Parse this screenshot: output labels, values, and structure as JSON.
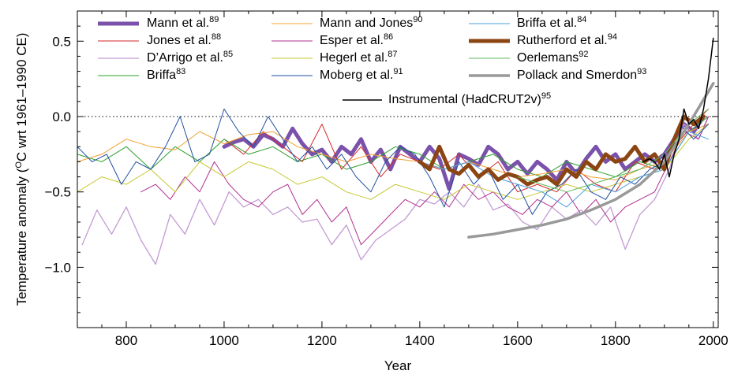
{
  "chart_data": {
    "type": "line",
    "xlabel": "Year",
    "ylabel_main": "Temperature anomaly (",
    "ylabel_sup": "O",
    "ylabel_rest": "C wrt 1961–1990 CE)",
    "xlim": [
      700,
      2010
    ],
    "ylim": [
      -1.4,
      0.7
    ],
    "xticks": [
      800,
      1000,
      1200,
      1400,
      1600,
      1800,
      2000
    ],
    "yticks": [
      {
        "value": 0.5,
        "label": "0.5"
      },
      {
        "value": 0.0,
        "label": "0.0"
      },
      {
        "value": -0.5,
        "label": "−0.5"
      },
      {
        "value": -1.0,
        "label": "−1.0"
      }
    ],
    "zero_line": "dotted",
    "legend_position": "top",
    "series": [
      {
        "name": "Mann et al.",
        "ref": "89",
        "color": "#7b52ab",
        "width": 5,
        "x": [
          1000,
          1020,
          1040,
          1060,
          1080,
          1100,
          1120,
          1140,
          1160,
          1180,
          1200,
          1220,
          1240,
          1260,
          1280,
          1300,
          1320,
          1340,
          1360,
          1380,
          1400,
          1420,
          1440,
          1460,
          1480,
          1500,
          1520,
          1540,
          1560,
          1580,
          1600,
          1620,
          1640,
          1660,
          1680,
          1700,
          1720,
          1740,
          1760,
          1780,
          1800,
          1820,
          1840,
          1860,
          1880,
          1900,
          1920,
          1940,
          1960,
          1980
        ],
        "y": [
          -0.2,
          -0.17,
          -0.15,
          -0.2,
          -0.12,
          -0.15,
          -0.2,
          -0.08,
          -0.18,
          -0.25,
          -0.22,
          -0.3,
          -0.2,
          -0.25,
          -0.15,
          -0.3,
          -0.22,
          -0.35,
          -0.2,
          -0.25,
          -0.3,
          -0.2,
          -0.28,
          -0.48,
          -0.25,
          -0.28,
          -0.32,
          -0.2,
          -0.25,
          -0.35,
          -0.3,
          -0.38,
          -0.3,
          -0.35,
          -0.42,
          -0.3,
          -0.38,
          -0.28,
          -0.2,
          -0.3,
          -0.25,
          -0.35,
          -0.3,
          -0.25,
          -0.3,
          -0.25,
          -0.15,
          -0.05,
          -0.1,
          0.0
        ]
      },
      {
        "name": "Jones et al.",
        "ref": "88",
        "color": "#d62728",
        "width": 1,
        "x": [
          1000,
          1040,
          1080,
          1120,
          1160,
          1200,
          1240,
          1280,
          1320,
          1360,
          1400,
          1440,
          1480,
          1520,
          1560,
          1600,
          1640,
          1680,
          1720,
          1760,
          1800,
          1840,
          1880,
          1920,
          1960,
          1990
        ],
        "y": [
          -0.15,
          -0.25,
          -0.1,
          -0.2,
          -0.3,
          -0.05,
          -0.35,
          -0.2,
          -0.4,
          -0.25,
          -0.3,
          -0.35,
          -0.25,
          -0.4,
          -0.3,
          -0.5,
          -0.45,
          -0.5,
          -0.35,
          -0.45,
          -0.5,
          -0.3,
          -0.35,
          -0.2,
          -0.05,
          0.05
        ]
      },
      {
        "name": "D’Arrigo et al.",
        "ref": "85",
        "color": "#c39bd3",
        "width": 1.3,
        "x": [
          710,
          740,
          770,
          800,
          830,
          860,
          890,
          920,
          950,
          980,
          1010,
          1040,
          1070,
          1100,
          1130,
          1160,
          1190,
          1220,
          1250,
          1280,
          1310,
          1340,
          1370,
          1400,
          1430,
          1460,
          1490,
          1520,
          1550,
          1580,
          1610,
          1640,
          1670,
          1700,
          1730,
          1760,
          1790,
          1820,
          1850,
          1880,
          1910,
          1940,
          1970,
          1990
        ],
        "y": [
          -0.85,
          -0.62,
          -0.78,
          -0.6,
          -0.82,
          -0.98,
          -0.65,
          -0.78,
          -0.55,
          -0.72,
          -0.5,
          -0.6,
          -0.55,
          -0.65,
          -0.6,
          -0.7,
          -0.68,
          -0.85,
          -0.72,
          -0.95,
          -0.82,
          -0.75,
          -0.68,
          -0.55,
          -0.58,
          -0.5,
          -0.6,
          -0.45,
          -0.62,
          -0.58,
          -0.7,
          -0.75,
          -0.6,
          -0.68,
          -0.62,
          -0.72,
          -0.6,
          -0.88,
          -0.65,
          -0.55,
          -0.35,
          -0.05,
          -0.15,
          0.0
        ]
      },
      {
        "name": "Briffa",
        "ref": "83",
        "color": "#2ca02c",
        "width": 1,
        "x": [
          700,
          750,
          800,
          850,
          900,
          950,
          1000,
          1050,
          1100,
          1150,
          1200,
          1250,
          1300,
          1350,
          1400,
          1450,
          1500,
          1550,
          1600,
          1650,
          1700,
          1750,
          1800,
          1850,
          1900,
          1950,
          1990
        ],
        "y": [
          -0.25,
          -0.3,
          -0.2,
          -0.35,
          -0.2,
          -0.3,
          -0.15,
          -0.25,
          -0.2,
          -0.3,
          -0.25,
          -0.35,
          -0.3,
          -0.2,
          -0.25,
          -0.35,
          -0.3,
          -0.25,
          -0.35,
          -0.4,
          -0.3,
          -0.35,
          -0.4,
          -0.3,
          -0.35,
          -0.1,
          0.0
        ]
      },
      {
        "name": "Mann and Jones",
        "ref": "90",
        "color": "#f0a030",
        "width": 1,
        "x": [
          700,
          750,
          800,
          850,
          900,
          950,
          1000,
          1050,
          1100,
          1150,
          1200,
          1250,
          1300,
          1350,
          1400,
          1450,
          1500,
          1550,
          1600,
          1650,
          1700,
          1750,
          1800,
          1850,
          1900,
          1950,
          1990
        ],
        "y": [
          -0.3,
          -0.25,
          -0.15,
          -0.2,
          -0.22,
          -0.1,
          -0.18,
          -0.12,
          -0.1,
          -0.2,
          -0.25,
          -0.3,
          -0.25,
          -0.28,
          -0.3,
          -0.35,
          -0.3,
          -0.35,
          -0.4,
          -0.38,
          -0.35,
          -0.4,
          -0.42,
          -0.35,
          -0.3,
          -0.1,
          -0.05
        ]
      },
      {
        "name": "Esper et al.",
        "ref": "86",
        "color": "#b0308f",
        "width": 1,
        "x": [
          830,
          860,
          890,
          920,
          950,
          980,
          1010,
          1040,
          1070,
          1100,
          1130,
          1160,
          1190,
          1220,
          1250,
          1280,
          1310,
          1340,
          1370,
          1400,
          1430,
          1460,
          1490,
          1520,
          1550,
          1580,
          1610,
          1640,
          1670,
          1700,
          1730,
          1760,
          1790,
          1820,
          1850,
          1880,
          1910,
          1940,
          1970,
          1990
        ],
        "y": [
          -0.5,
          -0.45,
          -0.55,
          -0.4,
          -0.5,
          -0.3,
          -0.45,
          -0.55,
          -0.6,
          -0.5,
          -0.45,
          -0.65,
          -0.55,
          -0.7,
          -0.6,
          -0.85,
          -0.75,
          -0.65,
          -0.55,
          -0.6,
          -0.5,
          -0.6,
          -0.45,
          -0.55,
          -0.5,
          -0.6,
          -0.65,
          -0.55,
          -0.6,
          -0.5,
          -0.65,
          -0.55,
          -0.7,
          -0.6,
          -0.55,
          -0.5,
          -0.3,
          -0.1,
          -0.15,
          0.0
        ]
      },
      {
        "name": "Hegerl et al.",
        "ref": "87",
        "color": "#c8c832",
        "width": 1,
        "x": [
          700,
          750,
          800,
          850,
          900,
          950,
          1000,
          1050,
          1100,
          1150,
          1200,
          1250,
          1300,
          1350,
          1400,
          1450,
          1500,
          1550,
          1600,
          1650,
          1700,
          1750,
          1800,
          1850,
          1900,
          1950,
          1990
        ],
        "y": [
          -0.5,
          -0.4,
          -0.45,
          -0.35,
          -0.5,
          -0.3,
          -0.4,
          -0.3,
          -0.35,
          -0.45,
          -0.4,
          -0.5,
          -0.55,
          -0.45,
          -0.5,
          -0.55,
          -0.45,
          -0.5,
          -0.55,
          -0.5,
          -0.45,
          -0.5,
          -0.45,
          -0.4,
          -0.35,
          -0.15,
          -0.05
        ]
      },
      {
        "name": "Moberg et al.",
        "ref": "91",
        "color": "#1f4fa0",
        "width": 1,
        "x": [
          700,
          730,
          760,
          790,
          820,
          850,
          880,
          910,
          940,
          970,
          1000,
          1030,
          1060,
          1090,
          1120,
          1150,
          1180,
          1210,
          1240,
          1270,
          1300,
          1330,
          1360,
          1390,
          1420,
          1450,
          1480,
          1510,
          1540,
          1570,
          1600,
          1630,
          1660,
          1690,
          1720,
          1750,
          1780,
          1810,
          1840,
          1870,
          1900,
          1930,
          1960,
          1990
        ],
        "y": [
          -0.2,
          -0.3,
          -0.25,
          -0.45,
          -0.3,
          -0.35,
          -0.2,
          0.0,
          -0.3,
          -0.25,
          0.05,
          -0.1,
          -0.2,
          0.0,
          -0.15,
          -0.3,
          -0.2,
          -0.35,
          -0.25,
          -0.4,
          -0.5,
          -0.3,
          -0.2,
          -0.25,
          -0.4,
          -0.6,
          -0.3,
          -0.45,
          -0.35,
          -0.55,
          -0.45,
          -0.65,
          -0.5,
          -0.45,
          -0.35,
          -0.5,
          -0.55,
          -0.4,
          -0.45,
          -0.35,
          -0.3,
          -0.05,
          -0.15,
          -0.05
        ]
      },
      {
        "name": "Briffa et al.",
        "ref": "84",
        "color": "#4aa0e0",
        "width": 1,
        "x": [
          1400,
          1450,
          1500,
          1550,
          1600,
          1650,
          1700,
          1750,
          1800,
          1850,
          1900,
          1950,
          1990
        ],
        "y": [
          -0.3,
          -0.35,
          -0.3,
          -0.4,
          -0.45,
          -0.5,
          -0.6,
          -0.45,
          -0.5,
          -0.4,
          -0.35,
          -0.1,
          -0.15
        ]
      },
      {
        "name": "Rutherford et al.",
        "ref": "94",
        "color": "#8b4513",
        "width": 5,
        "x": [
          1400,
          1420,
          1440,
          1460,
          1480,
          1500,
          1520,
          1540,
          1560,
          1580,
          1600,
          1620,
          1640,
          1660,
          1680,
          1700,
          1720,
          1740,
          1760,
          1780,
          1800,
          1820,
          1840,
          1860,
          1880,
          1900,
          1920,
          1940,
          1960,
          1980
        ],
        "y": [
          -0.3,
          -0.35,
          -0.2,
          -0.35,
          -0.38,
          -0.32,
          -0.4,
          -0.35,
          -0.42,
          -0.38,
          -0.4,
          -0.45,
          -0.42,
          -0.4,
          -0.45,
          -0.35,
          -0.4,
          -0.3,
          -0.35,
          -0.25,
          -0.3,
          -0.28,
          -0.2,
          -0.3,
          -0.25,
          -0.35,
          -0.15,
          0.0,
          -0.05,
          0.0
        ]
      },
      {
        "name": "Oerlemans",
        "ref": "92",
        "color": "#5cb85c",
        "width": 1,
        "x": [
          1600,
          1650,
          1700,
          1750,
          1800,
          1850,
          1900,
          1950,
          1990
        ],
        "y": [
          -0.4,
          -0.45,
          -0.5,
          -0.45,
          -0.4,
          -0.35,
          -0.25,
          -0.05,
          0.05
        ]
      },
      {
        "name": "Pollack and Smerdon",
        "ref": "93",
        "color": "#999999",
        "width": 3.5,
        "x": [
          1500,
          1550,
          1600,
          1650,
          1700,
          1750,
          1800,
          1850,
          1900,
          1950,
          2000
        ],
        "y": [
          -0.8,
          -0.78,
          -0.75,
          -0.72,
          -0.68,
          -0.62,
          -0.55,
          -0.45,
          -0.3,
          -0.05,
          0.22
        ]
      },
      {
        "name": "Instrumental (HadCRUT2v)",
        "ref": "95",
        "color": "#000000",
        "width": 1.5,
        "x": [
          1856,
          1870,
          1880,
          1890,
          1900,
          1910,
          1920,
          1930,
          1940,
          1950,
          1960,
          1970,
          1980,
          1990,
          2000
        ],
        "y": [
          -0.3,
          -0.28,
          -0.3,
          -0.35,
          -0.25,
          -0.4,
          -0.25,
          -0.15,
          0.05,
          -0.05,
          -0.02,
          -0.08,
          0.05,
          0.25,
          0.52
        ]
      }
    ]
  }
}
